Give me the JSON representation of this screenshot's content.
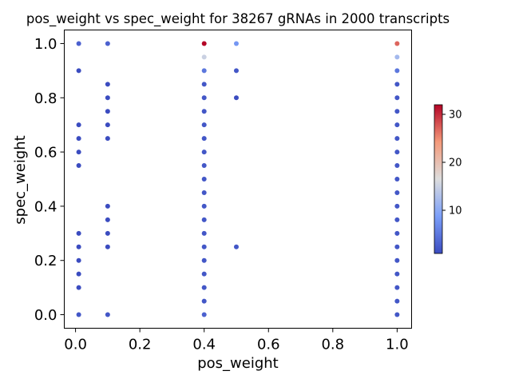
{
  "chart_data": {
    "type": "scatter",
    "title": "pos_weight vs spec_weight for 38267 gRNAs in 2000 transcripts",
    "xlabel": "pos_weight",
    "ylabel": "spec_weight",
    "xlim": [
      -0.035,
      1.045
    ],
    "ylim": [
      -0.05,
      1.05
    ],
    "xticks": [
      0.0,
      0.2,
      0.4,
      0.6,
      0.8,
      1.0
    ],
    "xtick_labels": [
      "0.0",
      "0.2",
      "0.4",
      "0.6",
      "0.8",
      "1.0"
    ],
    "yticks": [
      0.0,
      0.2,
      0.4,
      0.6,
      0.8,
      1.0
    ],
    "ytick_labels": [
      "0.0",
      "0.2",
      "0.4",
      "0.6",
      "0.8",
      "1.0"
    ],
    "colorbar": {
      "colormap": "coolwarm",
      "range": [
        1,
        32
      ],
      "ticks": [
        10,
        20,
        30
      ],
      "tick_labels": [
        "10",
        "20",
        "30"
      ]
    },
    "grid": false,
    "points": [
      {
        "x": 0.01,
        "y": 1.0,
        "c": 3
      },
      {
        "x": 0.01,
        "y": 0.9,
        "c": 1
      },
      {
        "x": 0.01,
        "y": 0.7,
        "c": 1
      },
      {
        "x": 0.01,
        "y": 0.65,
        "c": 1
      },
      {
        "x": 0.01,
        "y": 0.6,
        "c": 1
      },
      {
        "x": 0.01,
        "y": 0.55,
        "c": 1
      },
      {
        "x": 0.01,
        "y": 0.3,
        "c": 1
      },
      {
        "x": 0.01,
        "y": 0.25,
        "c": 1
      },
      {
        "x": 0.01,
        "y": 0.2,
        "c": 1
      },
      {
        "x": 0.01,
        "y": 0.15,
        "c": 1
      },
      {
        "x": 0.01,
        "y": 0.1,
        "c": 1
      },
      {
        "x": 0.01,
        "y": 0.0,
        "c": 2
      },
      {
        "x": 0.1,
        "y": 1.0,
        "c": 3
      },
      {
        "x": 0.1,
        "y": 0.85,
        "c": 1
      },
      {
        "x": 0.1,
        "y": 0.8,
        "c": 1
      },
      {
        "x": 0.1,
        "y": 0.75,
        "c": 1
      },
      {
        "x": 0.1,
        "y": 0.7,
        "c": 1
      },
      {
        "x": 0.1,
        "y": 0.65,
        "c": 1
      },
      {
        "x": 0.1,
        "y": 0.4,
        "c": 1
      },
      {
        "x": 0.1,
        "y": 0.35,
        "c": 1
      },
      {
        "x": 0.1,
        "y": 0.3,
        "c": 1
      },
      {
        "x": 0.1,
        "y": 0.25,
        "c": 1
      },
      {
        "x": 0.1,
        "y": 0.0,
        "c": 2
      },
      {
        "x": 0.4,
        "y": 1.0,
        "c": 32
      },
      {
        "x": 0.4,
        "y": 0.95,
        "c": 15
      },
      {
        "x": 0.4,
        "y": 0.9,
        "c": 5
      },
      {
        "x": 0.4,
        "y": 0.85,
        "c": 2
      },
      {
        "x": 0.4,
        "y": 0.8,
        "c": 2
      },
      {
        "x": 0.4,
        "y": 0.75,
        "c": 2
      },
      {
        "x": 0.4,
        "y": 0.7,
        "c": 2
      },
      {
        "x": 0.4,
        "y": 0.65,
        "c": 2
      },
      {
        "x": 0.4,
        "y": 0.6,
        "c": 2
      },
      {
        "x": 0.4,
        "y": 0.55,
        "c": 2
      },
      {
        "x": 0.4,
        "y": 0.5,
        "c": 2
      },
      {
        "x": 0.4,
        "y": 0.45,
        "c": 2
      },
      {
        "x": 0.4,
        "y": 0.4,
        "c": 2
      },
      {
        "x": 0.4,
        "y": 0.35,
        "c": 2
      },
      {
        "x": 0.4,
        "y": 0.3,
        "c": 2
      },
      {
        "x": 0.4,
        "y": 0.25,
        "c": 2
      },
      {
        "x": 0.4,
        "y": 0.2,
        "c": 2
      },
      {
        "x": 0.4,
        "y": 0.15,
        "c": 2
      },
      {
        "x": 0.4,
        "y": 0.1,
        "c": 2
      },
      {
        "x": 0.4,
        "y": 0.05,
        "c": 2
      },
      {
        "x": 0.4,
        "y": 0.0,
        "c": 3
      },
      {
        "x": 0.5,
        "y": 1.0,
        "c": 8
      },
      {
        "x": 0.5,
        "y": 0.9,
        "c": 2
      },
      {
        "x": 0.5,
        "y": 0.8,
        "c": 1
      },
      {
        "x": 0.5,
        "y": 0.25,
        "c": 2
      },
      {
        "x": 1.0,
        "y": 1.0,
        "c": 27
      },
      {
        "x": 1.0,
        "y": 0.95,
        "c": 12
      },
      {
        "x": 1.0,
        "y": 0.9,
        "c": 5
      },
      {
        "x": 1.0,
        "y": 0.85,
        "c": 2
      },
      {
        "x": 1.0,
        "y": 0.8,
        "c": 2
      },
      {
        "x": 1.0,
        "y": 0.75,
        "c": 2
      },
      {
        "x": 1.0,
        "y": 0.7,
        "c": 2
      },
      {
        "x": 1.0,
        "y": 0.65,
        "c": 2
      },
      {
        "x": 1.0,
        "y": 0.6,
        "c": 2
      },
      {
        "x": 1.0,
        "y": 0.55,
        "c": 2
      },
      {
        "x": 1.0,
        "y": 0.5,
        "c": 2
      },
      {
        "x": 1.0,
        "y": 0.45,
        "c": 2
      },
      {
        "x": 1.0,
        "y": 0.4,
        "c": 2
      },
      {
        "x": 1.0,
        "y": 0.35,
        "c": 2
      },
      {
        "x": 1.0,
        "y": 0.3,
        "c": 2
      },
      {
        "x": 1.0,
        "y": 0.25,
        "c": 2
      },
      {
        "x": 1.0,
        "y": 0.2,
        "c": 2
      },
      {
        "x": 1.0,
        "y": 0.15,
        "c": 2
      },
      {
        "x": 1.0,
        "y": 0.1,
        "c": 2
      },
      {
        "x": 1.0,
        "y": 0.05,
        "c": 2
      },
      {
        "x": 1.0,
        "y": 0.0,
        "c": 2
      }
    ]
  }
}
